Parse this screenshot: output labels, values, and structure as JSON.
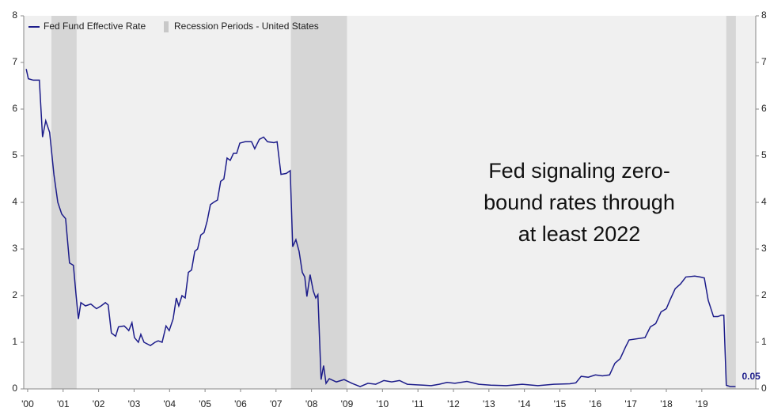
{
  "chart_data": {
    "type": "line",
    "legend": "top-left",
    "xlim": [
      2000.39,
      2021.02
    ],
    "xticks": [
      {
        "value": 2000.5,
        "label": "'00"
      },
      {
        "value": 2001.5,
        "label": "'01"
      },
      {
        "value": 2002.5,
        "label": "'02"
      },
      {
        "value": 2003.5,
        "label": "'03"
      },
      {
        "value": 2004.5,
        "label": "'04"
      },
      {
        "value": 2005.5,
        "label": "'05"
      },
      {
        "value": 2006.5,
        "label": "'06"
      },
      {
        "value": 2007.5,
        "label": "'07"
      },
      {
        "value": 2008.5,
        "label": "'08"
      },
      {
        "value": 2009.5,
        "label": "'09"
      },
      {
        "value": 2010.5,
        "label": "'10"
      },
      {
        "value": 2011.5,
        "label": "'11"
      },
      {
        "value": 2012.5,
        "label": "'12"
      },
      {
        "value": 2013.5,
        "label": "'13"
      },
      {
        "value": 2014.5,
        "label": "'14"
      },
      {
        "value": 2015.5,
        "label": "'15"
      },
      {
        "value": 2016.5,
        "label": "'16"
      },
      {
        "value": 2017.5,
        "label": "'17"
      },
      {
        "value": 2018.5,
        "label": "'18"
      },
      {
        "value": 2019.5,
        "label": "'19"
      }
    ],
    "ylim": [
      0,
      8
    ],
    "yticks": [
      0,
      1,
      2,
      3,
      4,
      5,
      6,
      7,
      8
    ],
    "y2lim": [
      0,
      8
    ],
    "y2ticks": [
      0,
      1,
      2,
      3,
      4,
      5,
      6,
      7,
      8
    ],
    "annotation": [
      "Fed signaling zero-",
      "bound rates through",
      "at least 2022"
    ],
    "recessions": {
      "name": "Recession Periods - United States",
      "color": "#d6d6d6",
      "periods": [
        [
          2001.17,
          2001.88
        ],
        [
          2007.92,
          2009.5
        ],
        [
          2020.19,
          2020.46
        ]
      ]
    },
    "series": [
      {
        "name": "Fed Fund Effective Rate",
        "color": "#1c1c8a",
        "x": [
          2000.46,
          2000.52,
          2000.66,
          2000.83,
          2000.92,
          2001.01,
          2001.12,
          2001.24,
          2001.35,
          2001.46,
          2001.57,
          2001.68,
          2001.79,
          2001.86,
          2001.93,
          2002.0,
          2002.13,
          2002.28,
          2002.44,
          2002.57,
          2002.69,
          2002.77,
          2002.86,
          2002.98,
          2003.06,
          2003.22,
          2003.29,
          2003.35,
          2003.44,
          2003.51,
          2003.62,
          2003.69,
          2003.78,
          2003.96,
          2004.09,
          2004.18,
          2004.29,
          2004.4,
          2004.49,
          2004.6,
          2004.69,
          2004.76,
          2004.85,
          2004.94,
          2005.03,
          2005.12,
          2005.21,
          2005.29,
          2005.38,
          2005.47,
          2005.56,
          2005.65,
          2005.74,
          2005.85,
          2005.94,
          2006.03,
          2006.12,
          2006.21,
          2006.3,
          2006.39,
          2006.48,
          2006.63,
          2006.81,
          2006.9,
          2007.03,
          2007.15,
          2007.26,
          2007.44,
          2007.53,
          2007.64,
          2007.79,
          2007.9,
          2007.97,
          2008.06,
          2008.15,
          2008.24,
          2008.31,
          2008.37,
          2008.46,
          2008.55,
          2008.62,
          2008.68,
          2008.77,
          2008.84,
          2008.91,
          2009.0,
          2009.2,
          2009.42,
          2009.64,
          2009.87,
          2010.09,
          2010.31,
          2010.54,
          2010.76,
          2010.98,
          2011.2,
          2011.43,
          2011.65,
          2011.87,
          2012.1,
          2012.32,
          2012.54,
          2012.88,
          2013.21,
          2013.55,
          2013.99,
          2014.44,
          2014.88,
          2015.33,
          2015.78,
          2015.95,
          2016.1,
          2016.3,
          2016.5,
          2016.7,
          2016.9,
          2017.05,
          2017.2,
          2017.35,
          2017.45,
          2017.9,
          2018.05,
          2018.2,
          2018.35,
          2018.5,
          2018.6,
          2018.75,
          2018.9,
          2019.05,
          2019.3,
          2019.45,
          2019.57,
          2019.68,
          2019.83,
          2019.95,
          2020.05,
          2020.12,
          2020.19,
          2020.3,
          2020.45
        ],
        "values": [
          6.86,
          6.65,
          6.62,
          6.62,
          5.4,
          5.75,
          5.5,
          4.6,
          4.0,
          3.75,
          3.65,
          2.7,
          2.65,
          2.05,
          1.5,
          1.85,
          1.78,
          1.82,
          1.72,
          1.78,
          1.85,
          1.8,
          1.2,
          1.13,
          1.33,
          1.35,
          1.3,
          1.25,
          1.42,
          1.1,
          1.0,
          1.17,
          1.0,
          0.93,
          1.0,
          1.03,
          1.0,
          1.35,
          1.25,
          1.5,
          1.95,
          1.78,
          2.0,
          1.95,
          2.5,
          2.55,
          2.95,
          3.0,
          3.3,
          3.35,
          3.6,
          3.95,
          4.0,
          4.05,
          4.45,
          4.5,
          4.95,
          4.9,
          5.05,
          5.05,
          5.27,
          5.3,
          5.3,
          5.15,
          5.35,
          5.4,
          5.3,
          5.28,
          5.3,
          4.6,
          4.62,
          4.68,
          3.05,
          3.2,
          2.95,
          2.5,
          2.4,
          1.98,
          2.45,
          2.1,
          1.95,
          2.02,
          0.2,
          0.5,
          0.12,
          0.22,
          0.15,
          0.2,
          0.12,
          0.05,
          0.12,
          0.1,
          0.18,
          0.15,
          0.18,
          0.1,
          0.09,
          0.08,
          0.07,
          0.1,
          0.14,
          0.12,
          0.16,
          0.1,
          0.08,
          0.07,
          0.1,
          0.07,
          0.1,
          0.11,
          0.13,
          0.27,
          0.25,
          0.3,
          0.28,
          0.3,
          0.55,
          0.65,
          0.9,
          1.05,
          1.1,
          1.33,
          1.4,
          1.65,
          1.72,
          1.9,
          2.15,
          2.25,
          2.4,
          2.42,
          2.4,
          2.38,
          1.9,
          1.55,
          1.55,
          1.58,
          1.58,
          0.08,
          0.05,
          0.05
        ]
      }
    ]
  }
}
